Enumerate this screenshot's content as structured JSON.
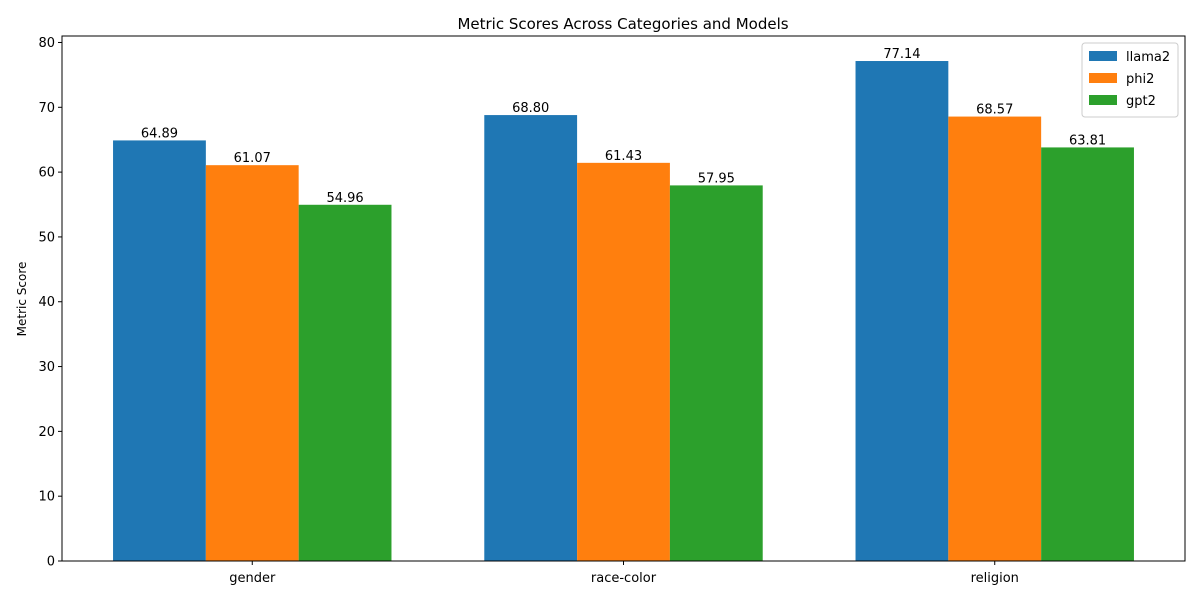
{
  "chart_data": {
    "type": "bar",
    "title": "Metric Scores Across Categories and Models",
    "xlabel": "",
    "ylabel": "Metric Score",
    "categories": [
      "gender",
      "race-color",
      "religion"
    ],
    "series": [
      {
        "name": "llama2",
        "color": "#1f77b4",
        "values": [
          64.89,
          68.8,
          77.14
        ],
        "labels": [
          "64.89",
          "68.80",
          "77.14"
        ]
      },
      {
        "name": "phi2",
        "color": "#ff7f0e",
        "values": [
          61.07,
          61.43,
          68.57
        ],
        "labels": [
          "61.07",
          "61.43",
          "68.57"
        ]
      },
      {
        "name": "gpt2",
        "color": "#2ca02c",
        "values": [
          54.96,
          57.95,
          63.81
        ],
        "labels": [
          "54.96",
          "57.95",
          "63.81"
        ]
      }
    ],
    "ylim": [
      0,
      81
    ],
    "yticks": [
      0,
      10,
      20,
      30,
      40,
      50,
      60,
      70,
      80
    ],
    "grid": false,
    "legend_position": "top-right"
  }
}
